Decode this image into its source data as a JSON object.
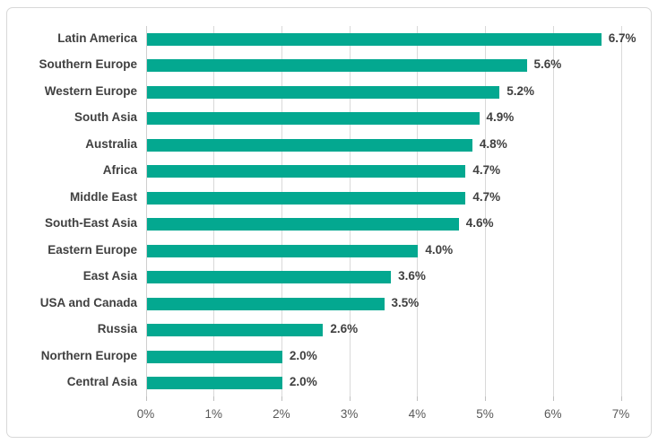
{
  "chart_data": {
    "type": "bar",
    "orientation": "horizontal",
    "title": "",
    "xlabel": "",
    "ylabel": "",
    "xlim": [
      0,
      7
    ],
    "grid": "vertical",
    "legend": "none",
    "categories": [
      "Latin America",
      "Southern Europe",
      "Western Europe",
      "South Asia",
      "Australia",
      "Africa",
      "Middle East",
      "South-East Asia",
      "Eastern Europe",
      "East Asia",
      "USA and Canada",
      "Russia",
      "Northern Europe",
      "Central Asia"
    ],
    "values": [
      6.7,
      5.6,
      5.2,
      4.9,
      4.8,
      4.7,
      4.7,
      4.6,
      4.0,
      3.6,
      3.5,
      2.6,
      2.0,
      2.0
    ],
    "data_labels": [
      "6.7%",
      "5.6%",
      "5.2%",
      "4.9%",
      "4.8%",
      "4.7%",
      "4.7%",
      "4.6%",
      "4.0%",
      "3.6%",
      "3.5%",
      "2.6%",
      "2.0%",
      "2.0%"
    ],
    "x_ticks": [
      "0%",
      "1%",
      "2%",
      "3%",
      "4%",
      "5%",
      "6%",
      "7%"
    ],
    "x_tick_values": [
      0,
      1,
      2,
      3,
      4,
      5,
      6,
      7
    ],
    "colors": {
      "bar": "#03A890",
      "gridline": "#d9d9d9",
      "axis_line": "#cfcfcf",
      "category_label": "#404040",
      "value_label": "#404040",
      "tick_label": "#595959",
      "border": "#d8d8d8",
      "background": "#ffffff"
    }
  }
}
